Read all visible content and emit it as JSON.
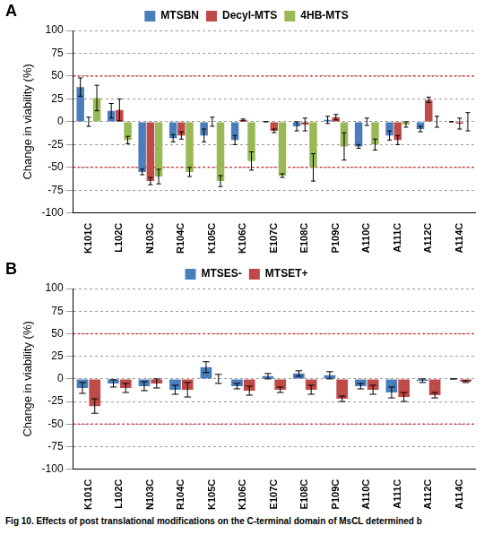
{
  "chart_data": [
    {
      "type": "bar",
      "panel_label": "A",
      "y_label": "Change in viability (%)",
      "categories": [
        "K101C",
        "L102C",
        "N103C",
        "R104C",
        "K105C",
        "K106C",
        "E107C",
        "E108C",
        "P109C",
        "A110C",
        "A111C",
        "A112C",
        "A114C"
      ],
      "series": [
        {
          "name": "MTSBN",
          "color": "#4a7ebb",
          "values": [
            38,
            12,
            -55,
            -18,
            -15,
            -20,
            0,
            -5,
            2,
            -27,
            -15,
            -8,
            0
          ],
          "errors": [
            10,
            8,
            3,
            4,
            7,
            5,
            0,
            5,
            4,
            2,
            5,
            3,
            0
          ]
        },
        {
          "name": "Decyl-MTS",
          "color": "#be4b48",
          "values": [
            0,
            13,
            -65,
            -15,
            0,
            2,
            -10,
            -3,
            5,
            0,
            -20,
            24,
            -2
          ],
          "errors": [
            5,
            12,
            4,
            4,
            5,
            1,
            2,
            7,
            3,
            4,
            5,
            3,
            6
          ]
        },
        {
          "name": "4HB-MTS",
          "color": "#98b954",
          "values": [
            26,
            -20,
            -60,
            -55,
            -65,
            -43,
            -59,
            -50,
            -27,
            -25,
            -3,
            0,
            0
          ],
          "errors": [
            14,
            4,
            8,
            5,
            6,
            10,
            2,
            15,
            15,
            6,
            3,
            6,
            10
          ]
        }
      ],
      "ylim": [
        -100,
        100
      ],
      "yticks": [
        -100,
        -75,
        -50,
        -25,
        0,
        25,
        50,
        75,
        100
      ],
      "reference_lines": [
        -50,
        50
      ],
      "grid": true,
      "legend": "top"
    },
    {
      "type": "bar",
      "panel_label": "B",
      "y_label": "Change in viability (%)",
      "categories": [
        "K101C",
        "L102C",
        "N103C",
        "R104C",
        "K105C",
        "K106C",
        "E107C",
        "E108C",
        "P109C",
        "A110C",
        "A111C",
        "A112C",
        "A114C"
      ],
      "series": [
        {
          "name": "MTSES-",
          "color": "#4a7ebb",
          "values": [
            -10,
            -5,
            -8,
            -12,
            13,
            -8,
            3,
            6,
            4,
            -8,
            -15,
            -2,
            0
          ],
          "errors": [
            6,
            4,
            5,
            5,
            6,
            3,
            3,
            3,
            4,
            3,
            6,
            2,
            0
          ]
        },
        {
          "name": "MTSET+",
          "color": "#be4b48",
          "values": [
            -30,
            -10,
            -5,
            -12,
            0,
            -13,
            -12,
            -12,
            -22,
            -12,
            -20,
            -18,
            -3
          ],
          "errors": [
            8,
            5,
            5,
            8,
            5,
            5,
            3,
            5,
            3,
            5,
            5,
            3,
            1
          ]
        }
      ],
      "ylim": [
        -100,
        100
      ],
      "yticks": [
        -100,
        -75,
        -50,
        -25,
        0,
        25,
        50,
        75,
        100
      ],
      "reference_lines": [
        -50,
        50
      ],
      "grid": true,
      "legend": "top"
    }
  ],
  "caption": "Fig 10. Effects of post translational modifications on the C-terminal domain of MsCL determined b"
}
